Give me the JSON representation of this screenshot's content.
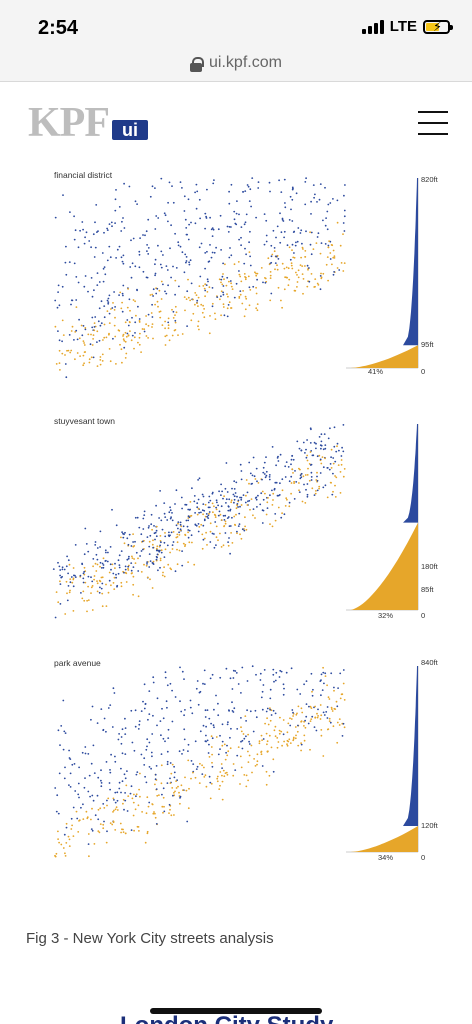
{
  "status_bar": {
    "time": "2:54",
    "network": "LTE"
  },
  "browser": {
    "url": "ui.kpf.com"
  },
  "site": {
    "logo_text": "KPF",
    "logo_badge": "ui"
  },
  "colors": {
    "upper": "#2c4a9e",
    "lower": "#e6a62a",
    "logo_grey": "#bdbdbd",
    "badge_blue": "#1f3a8a"
  },
  "panels": [
    {
      "title": "financial district",
      "max_height": "820ft",
      "mid_height": "95ft",
      "zero": "0",
      "share": "41%",
      "threshold_fraction": 0.12
    },
    {
      "title": "stuyvesant town",
      "max_height": "180ft",
      "mid_height": "85ft",
      "zero": "0",
      "share": "32%",
      "threshold_fraction": 0.47
    },
    {
      "title": "park avenue",
      "max_height": "840ft",
      "mid_height": "120ft",
      "zero": "0",
      "share": "34%",
      "threshold_fraction": 0.14
    }
  ],
  "caption": "Fig 3 - New York City streets analysis",
  "next_section": "London City Study"
}
